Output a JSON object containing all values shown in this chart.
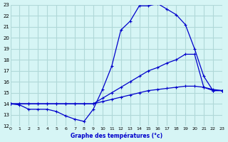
{
  "title": "Graphe des températures (°c)",
  "xlim": [
    0,
    23
  ],
  "ylim": [
    12,
    23
  ],
  "xticks": [
    0,
    1,
    2,
    3,
    4,
    5,
    6,
    7,
    8,
    9,
    10,
    11,
    12,
    13,
    14,
    15,
    16,
    17,
    18,
    19,
    20,
    21,
    22,
    23
  ],
  "yticks": [
    12,
    13,
    14,
    15,
    16,
    17,
    18,
    19,
    20,
    21,
    22,
    23
  ],
  "bg_color": "#d6f5f5",
  "grid_color": "#b0d8d8",
  "line_color": "#0000cc",
  "line1_x": [
    0,
    1,
    2,
    3,
    4,
    5,
    6,
    7,
    8,
    9,
    10,
    11,
    12,
    13,
    14,
    15,
    16,
    17,
    18,
    19,
    20,
    21,
    22,
    23
  ],
  "line1_y": [
    14,
    13.9,
    13.5,
    13.5,
    13.5,
    13.3,
    12.9,
    12.6,
    12.4,
    13.5,
    15.3,
    17.4,
    20.7,
    21.5,
    22.9,
    22.9,
    23.1,
    22.6,
    22.1,
    21.2,
    19.0,
    16.5,
    15.2,
    15.2
  ],
  "line2_x": [
    0,
    1,
    2,
    3,
    4,
    5,
    6,
    7,
    8,
    9,
    10,
    11,
    12,
    13,
    14,
    15,
    16,
    17,
    18,
    19,
    20,
    21,
    22,
    23
  ],
  "line2_y": [
    14,
    14,
    14,
    14,
    14,
    14,
    14,
    14,
    14,
    14,
    14.5,
    15.0,
    15.5,
    16.0,
    16.5,
    17.0,
    17.3,
    17.7,
    18.0,
    18.5,
    18.5,
    15.5,
    15.2,
    15.2
  ],
  "line3_x": [
    0,
    1,
    2,
    3,
    4,
    5,
    6,
    7,
    8,
    9,
    10,
    11,
    12,
    13,
    14,
    15,
    16,
    17,
    18,
    19,
    20,
    21,
    22,
    23
  ],
  "line3_y": [
    14,
    14,
    14,
    14,
    14,
    14,
    14,
    14,
    14,
    14,
    14.2,
    14.4,
    14.6,
    14.8,
    15.0,
    15.2,
    15.3,
    15.4,
    15.5,
    15.6,
    15.6,
    15.5,
    15.3,
    15.2
  ]
}
